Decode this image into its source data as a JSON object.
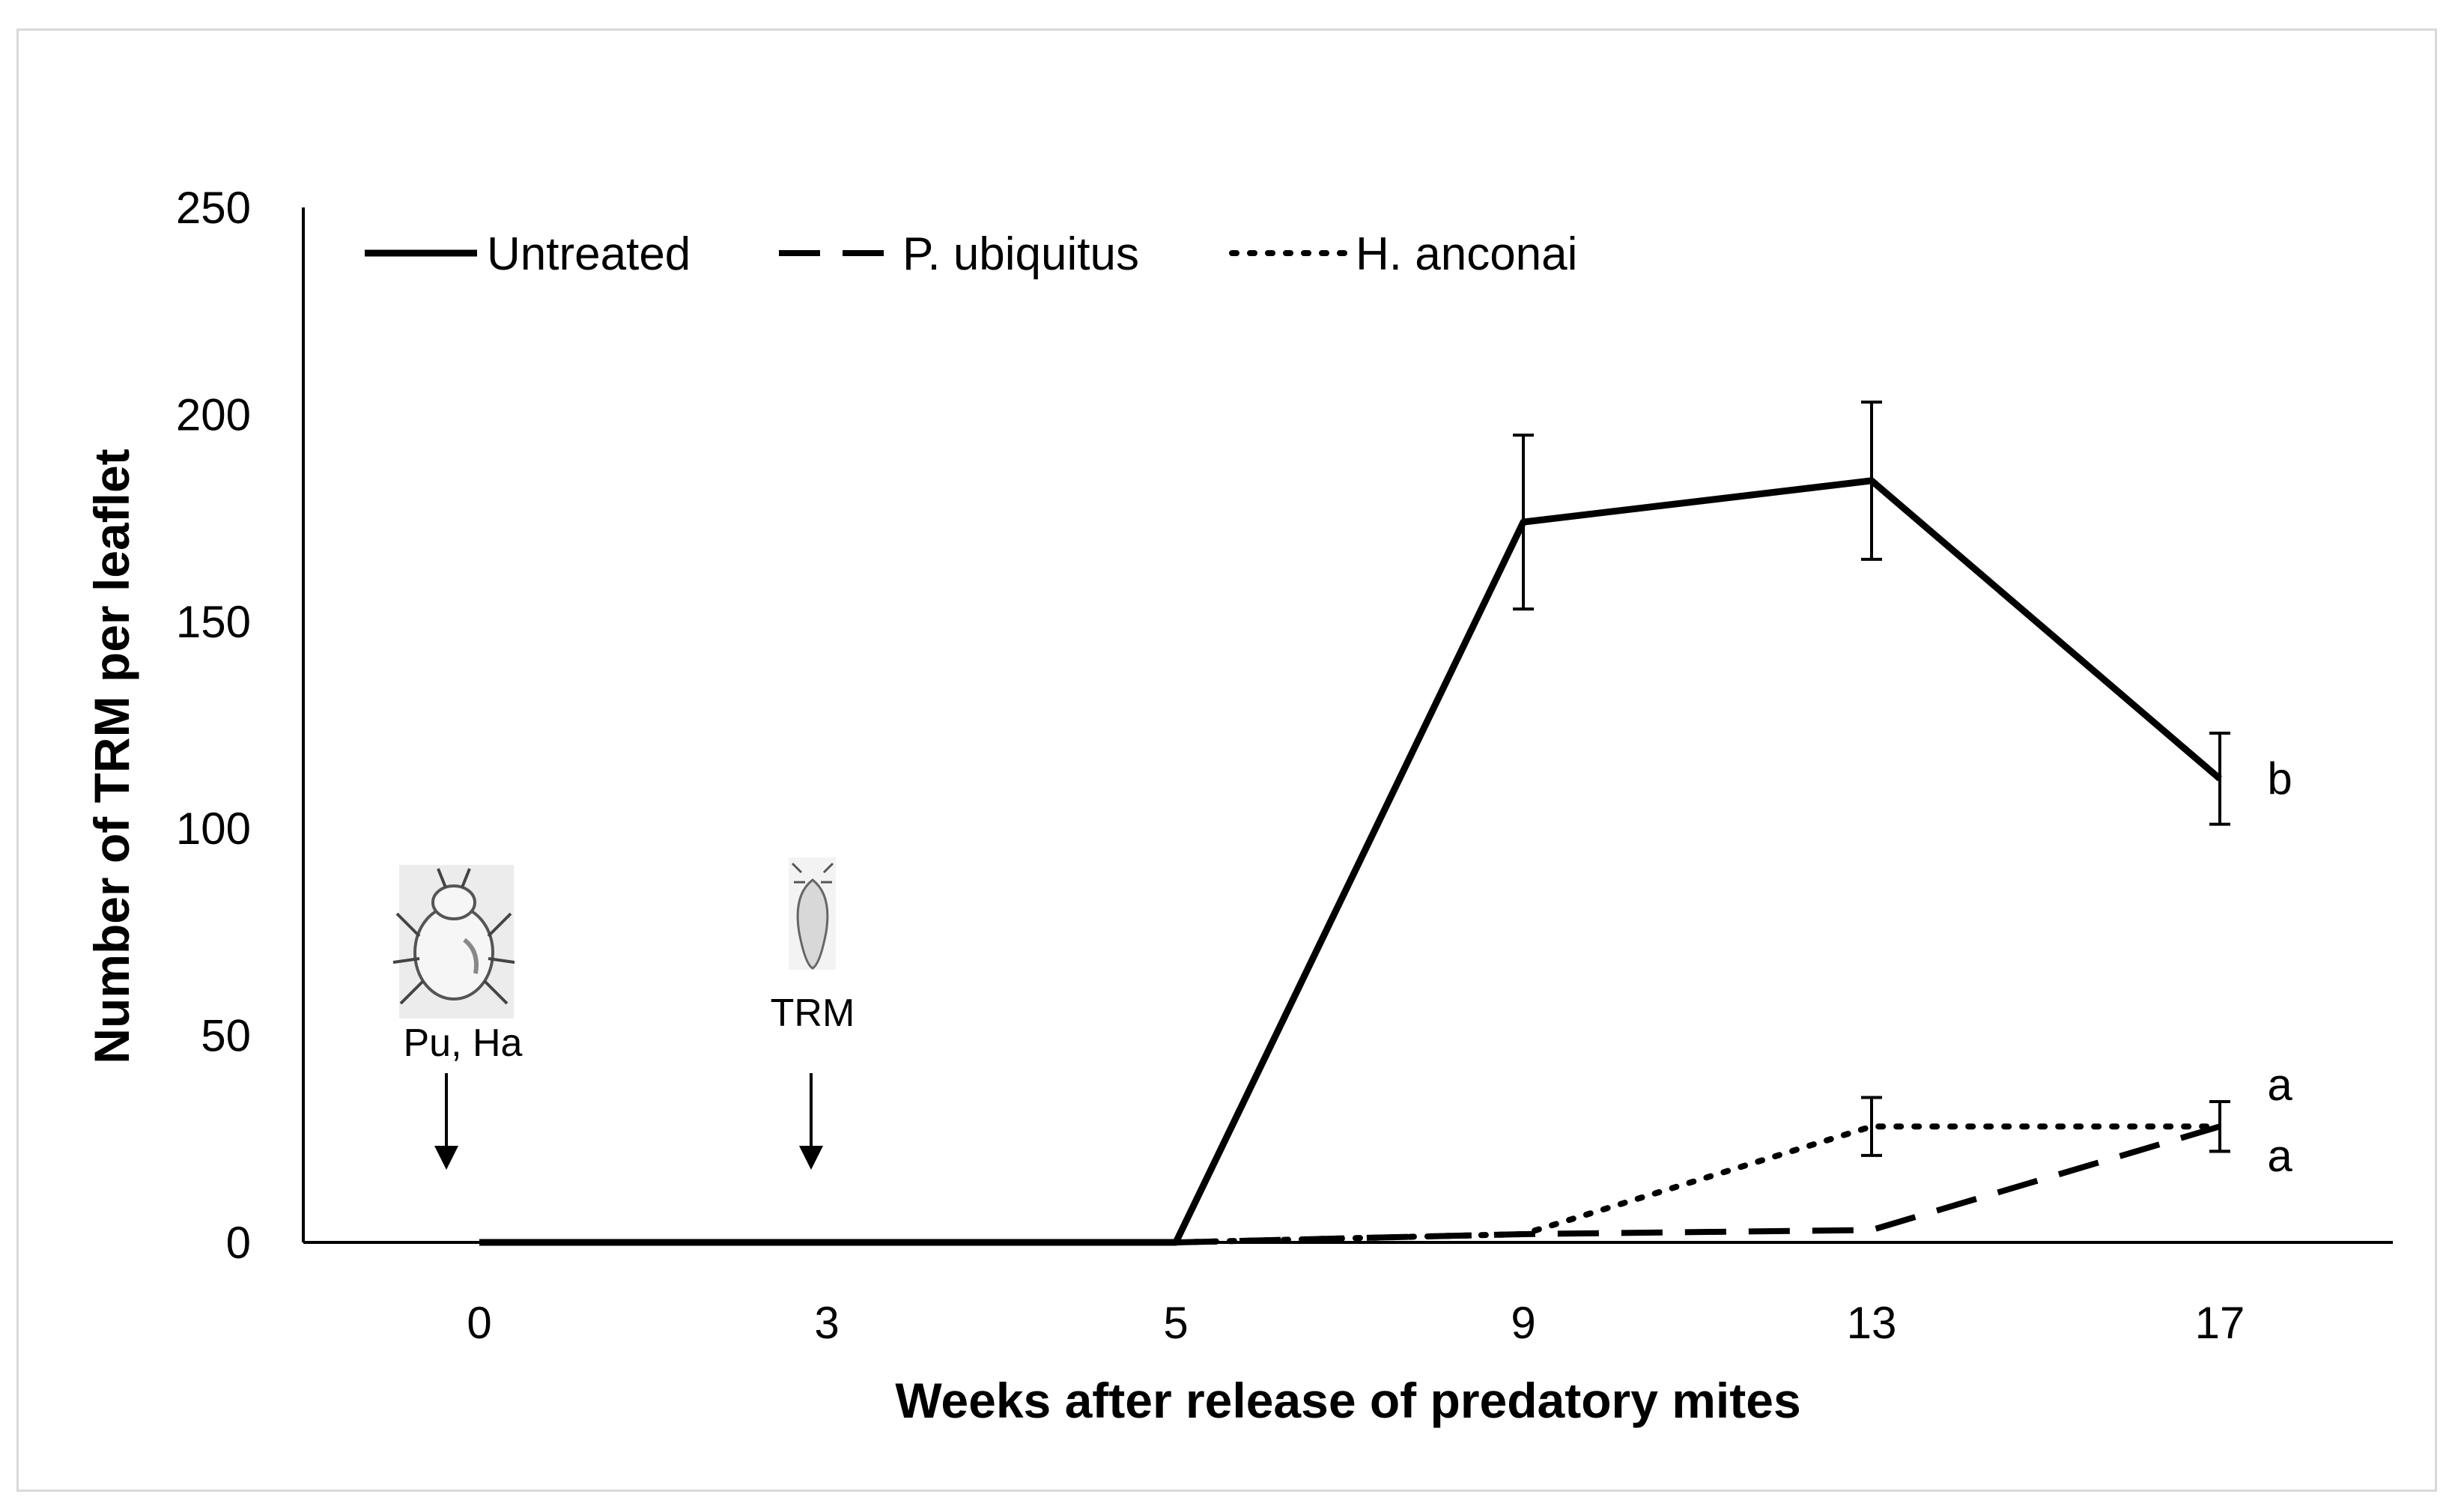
{
  "chart_data": {
    "type": "line",
    "title": "",
    "xlabel": "Weeks after release of predatory mites",
    "ylabel": "Number of TRM per leaflet",
    "categories": [
      "0",
      "3",
      "5",
      "9",
      "13",
      "17"
    ],
    "ylim": [
      0,
      250
    ],
    "yticks": [
      0,
      50,
      100,
      150,
      200,
      250
    ],
    "grid": false,
    "legend_position": "top-left",
    "series": [
      {
        "name": "Untreated",
        "style": "solid",
        "values": [
          0,
          0,
          0,
          174,
          184,
          112
        ],
        "error": [
          null,
          null,
          null,
          21,
          19,
          11
        ],
        "letter": "b"
      },
      {
        "name": "P. ubiquitus",
        "style": "dashed",
        "values": [
          null,
          null,
          0,
          2,
          3,
          28
        ],
        "error": [
          null,
          null,
          null,
          null,
          null,
          6
        ],
        "letter": "a"
      },
      {
        "name": "H. anconai",
        "style": "dotted",
        "values": [
          null,
          null,
          0,
          2,
          28,
          28
        ],
        "error": [
          null,
          null,
          null,
          null,
          7,
          6
        ],
        "letter": "a"
      }
    ],
    "annotations": [
      {
        "label": "Pu, Ha",
        "x": "0",
        "icon": "predatory-mite-icon"
      },
      {
        "label": "TRM",
        "x": "3",
        "icon": "rust-mite-icon"
      }
    ]
  }
}
